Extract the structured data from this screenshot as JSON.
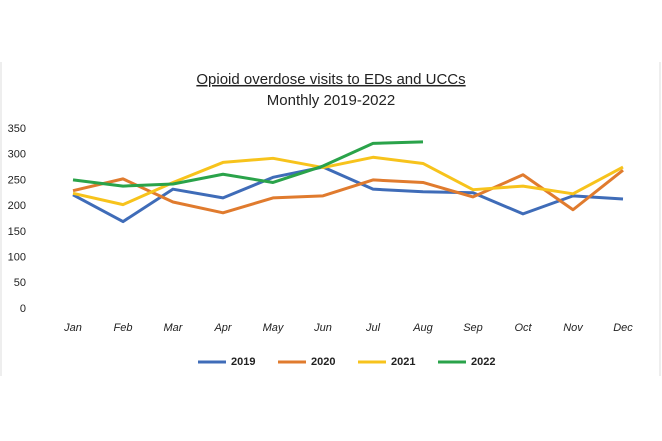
{
  "chart_data": {
    "type": "line",
    "title": "Opioid overdose visits to EDs and UCCs",
    "subtitle": "Monthly 2019-2022",
    "categories": [
      "Jan",
      "Feb",
      "Mar",
      "Apr",
      "May",
      "Jun",
      "Jul",
      "Aug",
      "Sep",
      "Oct",
      "Nov",
      "Dec"
    ],
    "series": [
      {
        "name": "2019",
        "color": "#3f6cb8",
        "values": [
          222,
          170,
          233,
          216,
          256,
          276,
          233,
          228,
          226,
          185,
          220,
          214
        ]
      },
      {
        "name": "2020",
        "color": "#e07b2e",
        "values": [
          230,
          253,
          208,
          187,
          216,
          220,
          251,
          246,
          218,
          261,
          193,
          270
        ]
      },
      {
        "name": "2021",
        "color": "#f7c31c",
        "values": [
          225,
          203,
          246,
          285,
          293,
          275,
          295,
          283,
          232,
          239,
          224,
          276
        ]
      },
      {
        "name": "2022",
        "color": "#2aa34a",
        "values": [
          251,
          239,
          243,
          262,
          246,
          278,
          322,
          325,
          null,
          null,
          null,
          null
        ]
      }
    ],
    "ylim": [
      0,
      350
    ],
    "yticks": [
      0,
      50,
      100,
      150,
      200,
      250,
      300,
      350
    ],
    "grid": false,
    "legend": "bottom"
  }
}
